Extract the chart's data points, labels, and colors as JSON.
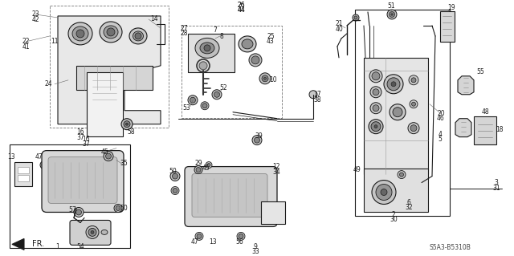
{
  "bg_color": "#ffffff",
  "fg_color": "#1a1a1a",
  "fig_width": 6.4,
  "fig_height": 3.19,
  "dpi": 100,
  "watermark": "S5A3-B5310B",
  "fs": 5.5
}
